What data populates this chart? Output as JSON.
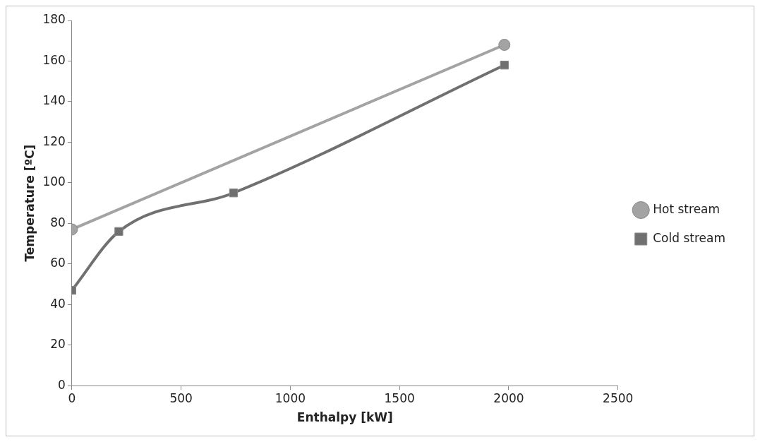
{
  "chart_data": {
    "type": "line",
    "xlabel": "Enthalpy [kW]",
    "ylabel": "Temperature [ºC]",
    "xlim": [
      0,
      2500
    ],
    "xticks": [
      0,
      500,
      1000,
      1500,
      2000,
      2500
    ],
    "ylim": [
      0,
      180
    ],
    "yticks": [
      0,
      20,
      40,
      60,
      80,
      100,
      120,
      140,
      160,
      180
    ],
    "grid": false,
    "legend": "right",
    "series": [
      {
        "name": "Hot stream",
        "color": "#a3a3a3",
        "marker": "circle",
        "x": [
          0,
          1980
        ],
        "values": [
          77,
          168
        ]
      },
      {
        "name": "Cold stream",
        "color": "#707070",
        "marker": "square",
        "x": [
          0,
          215,
          740,
          1980
        ],
        "values": [
          47,
          76,
          95,
          158
        ]
      }
    ]
  }
}
